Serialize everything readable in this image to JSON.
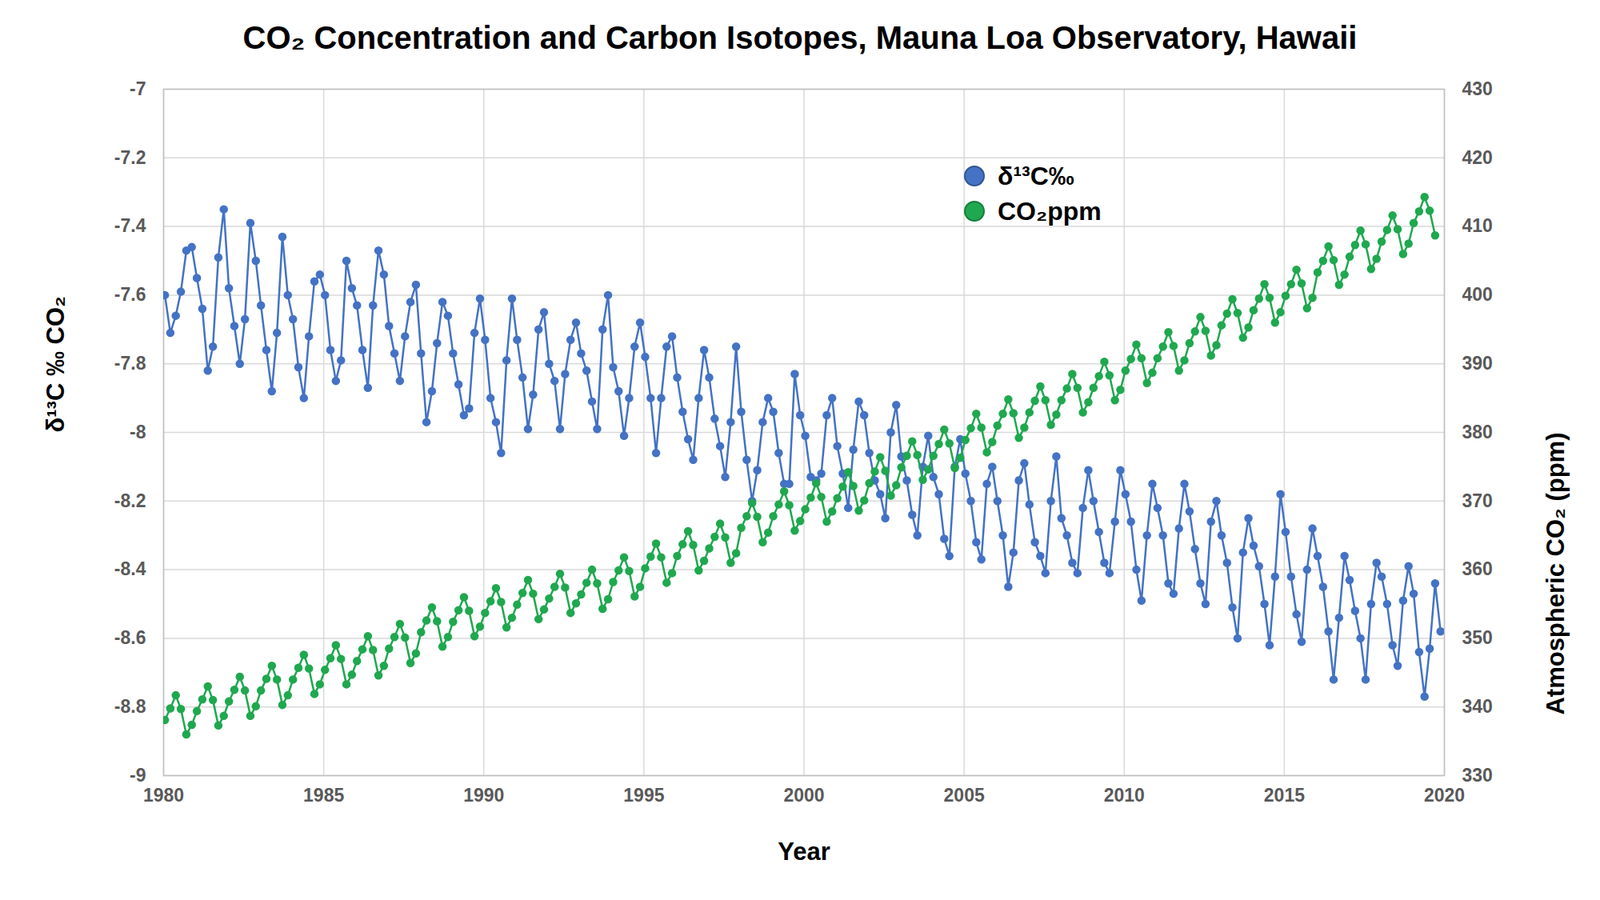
{
  "chart_data": {
    "type": "line",
    "title": "CO₂ Concentration and Carbon Isotopes, Mauna Loa Observatory, Hawaii",
    "x_label": "Year",
    "y_label": "δ¹³C ‰ CO₂",
    "y2_label": "Atmospheric CO₂ (ppm)",
    "x": [
      1980.04,
      1980.21,
      1980.38,
      1980.54,
      1980.71,
      1980.88,
      1981.04,
      1981.21,
      1981.38,
      1981.54,
      1981.71,
      1981.88,
      1982.04,
      1982.21,
      1982.38,
      1982.54,
      1982.71,
      1982.88,
      1983.04,
      1983.21,
      1983.38,
      1983.54,
      1983.71,
      1983.88,
      1984.04,
      1984.21,
      1984.38,
      1984.54,
      1984.71,
      1984.88,
      1985.04,
      1985.21,
      1985.38,
      1985.54,
      1985.71,
      1985.88,
      1986.04,
      1986.21,
      1986.38,
      1986.54,
      1986.71,
      1986.88,
      1987.04,
      1987.21,
      1987.38,
      1987.54,
      1987.71,
      1987.88,
      1988.04,
      1988.21,
      1988.38,
      1988.54,
      1988.71,
      1988.88,
      1989.04,
      1989.21,
      1989.38,
      1989.54,
      1989.71,
      1989.88,
      1990.04,
      1990.21,
      1990.38,
      1990.54,
      1990.71,
      1990.88,
      1991.04,
      1991.21,
      1991.38,
      1991.54,
      1991.71,
      1991.88,
      1992.04,
      1992.21,
      1992.38,
      1992.54,
      1992.71,
      1992.88,
      1993.04,
      1993.21,
      1993.38,
      1993.54,
      1993.71,
      1993.88,
      1994.04,
      1994.21,
      1994.38,
      1994.54,
      1994.71,
      1994.88,
      1995.04,
      1995.21,
      1995.38,
      1995.54,
      1995.71,
      1995.88,
      1996.04,
      1996.21,
      1996.38,
      1996.54,
      1996.71,
      1996.88,
      1997.04,
      1997.21,
      1997.38,
      1997.54,
      1997.71,
      1997.88,
      1998.04,
      1998.21,
      1998.38,
      1998.54,
      1998.71,
      1998.88,
      1999.04,
      1999.21,
      1999.38,
      1999.54,
      1999.71,
      1999.88,
      2000.04,
      2000.21,
      2000.38,
      2000.54,
      2000.71,
      2000.88,
      2001.04,
      2001.21,
      2001.38,
      2001.54,
      2001.71,
      2001.88,
      2002.04,
      2002.21,
      2002.38,
      2002.54,
      2002.71,
      2002.88,
      2003.04,
      2003.21,
      2003.38,
      2003.54,
      2003.71,
      2003.88,
      2004.04,
      2004.21,
      2004.38,
      2004.54,
      2004.71,
      2004.88,
      2005.04,
      2005.21,
      2005.38,
      2005.54,
      2005.71,
      2005.88,
      2006.04,
      2006.21,
      2006.38,
      2006.54,
      2006.71,
      2006.88,
      2007.04,
      2007.21,
      2007.38,
      2007.54,
      2007.71,
      2007.88,
      2008.04,
      2008.21,
      2008.38,
      2008.54,
      2008.71,
      2008.88,
      2009.04,
      2009.21,
      2009.38,
      2009.54,
      2009.71,
      2009.88,
      2010.04,
      2010.21,
      2010.38,
      2010.54,
      2010.71,
      2010.88,
      2011.04,
      2011.21,
      2011.38,
      2011.54,
      2011.71,
      2011.88,
      2012.04,
      2012.21,
      2012.38,
      2012.54,
      2012.71,
      2012.88,
      2013.04,
      2013.21,
      2013.38,
      2013.54,
      2013.71,
      2013.88,
      2014.04,
      2014.21,
      2014.38,
      2014.54,
      2014.71,
      2014.88,
      2015.04,
      2015.21,
      2015.38,
      2015.54,
      2015.71,
      2015.88,
      2016.04,
      2016.21,
      2016.38,
      2016.54,
      2016.71,
      2016.88,
      2017.04,
      2017.21,
      2017.38,
      2017.54,
      2017.71,
      2017.88,
      2018.04,
      2018.21,
      2018.38,
      2018.54,
      2018.71,
      2018.88,
      2019.04,
      2019.21,
      2019.38,
      2019.54,
      2019.71,
      2019.88
    ],
    "series": [
      {
        "name": "δ¹³C‰",
        "color": "#4472c4",
        "axis": "y",
        "marker": "circle",
        "values": [
          -7.6,
          -7.71,
          -7.66,
          -7.59,
          -7.47,
          -7.46,
          -7.55,
          -7.64,
          -7.82,
          -7.75,
          -7.49,
          -7.35,
          -7.58,
          -7.69,
          -7.8,
          -7.67,
          -7.39,
          -7.5,
          -7.63,
          -7.76,
          -7.88,
          -7.71,
          -7.43,
          -7.6,
          -7.67,
          -7.81,
          -7.9,
          -7.72,
          -7.56,
          -7.54,
          -7.6,
          -7.76,
          -7.85,
          -7.79,
          -7.5,
          -7.58,
          -7.63,
          -7.76,
          -7.87,
          -7.63,
          -7.47,
          -7.54,
          -7.69,
          -7.77,
          -7.85,
          -7.72,
          -7.62,
          -7.57,
          -7.77,
          -7.97,
          -7.88,
          -7.74,
          -7.62,
          -7.66,
          -7.77,
          -7.86,
          -7.95,
          -7.93,
          -7.71,
          -7.61,
          -7.73,
          -7.9,
          -7.97,
          -8.06,
          -7.79,
          -7.61,
          -7.73,
          -7.84,
          -7.99,
          -7.89,
          -7.7,
          -7.65,
          -7.8,
          -7.85,
          -7.99,
          -7.83,
          -7.73,
          -7.68,
          -7.77,
          -7.82,
          -7.91,
          -7.99,
          -7.7,
          -7.6,
          -7.81,
          -7.88,
          -8.01,
          -7.9,
          -7.75,
          -7.68,
          -7.78,
          -7.9,
          -8.06,
          -7.9,
          -7.75,
          -7.72,
          -7.84,
          -7.94,
          -8.02,
          -8.08,
          -7.9,
          -7.76,
          -7.84,
          -7.96,
          -8.04,
          -8.13,
          -7.97,
          -7.75,
          -7.94,
          -8.08,
          -8.2,
          -8.11,
          -7.97,
          -7.9,
          -7.94,
          -8.06,
          -8.15,
          -8.15,
          -7.83,
          -7.95,
          -8.01,
          -8.13,
          -8.14,
          -8.12,
          -7.95,
          -7.9,
          -8.04,
          -8.12,
          -8.22,
          -8.05,
          -7.91,
          -7.95,
          -8.06,
          -8.14,
          -8.18,
          -8.25,
          -8.0,
          -7.92,
          -8.07,
          -8.14,
          -8.24,
          -8.3,
          -8.1,
          -8.01,
          -8.13,
          -8.18,
          -8.31,
          -8.36,
          -8.1,
          -8.02,
          -8.12,
          -8.2,
          -8.32,
          -8.37,
          -8.15,
          -8.1,
          -8.2,
          -8.3,
          -8.45,
          -8.35,
          -8.14,
          -8.09,
          -8.21,
          -8.32,
          -8.36,
          -8.41,
          -8.2,
          -8.07,
          -8.25,
          -8.3,
          -8.38,
          -8.41,
          -8.22,
          -8.11,
          -8.2,
          -8.29,
          -8.38,
          -8.41,
          -8.26,
          -8.11,
          -8.18,
          -8.26,
          -8.4,
          -8.49,
          -8.3,
          -8.15,
          -8.22,
          -8.3,
          -8.44,
          -8.47,
          -8.28,
          -8.15,
          -8.23,
          -8.34,
          -8.44,
          -8.5,
          -8.26,
          -8.2,
          -8.3,
          -8.38,
          -8.51,
          -8.6,
          -8.35,
          -8.25,
          -8.33,
          -8.39,
          -8.5,
          -8.62,
          -8.42,
          -8.18,
          -8.29,
          -8.42,
          -8.53,
          -8.61,
          -8.4,
          -8.28,
          -8.36,
          -8.45,
          -8.58,
          -8.72,
          -8.54,
          -8.36,
          -8.43,
          -8.52,
          -8.6,
          -8.72,
          -8.5,
          -8.38,
          -8.42,
          -8.5,
          -8.62,
          -8.68,
          -8.49,
          -8.39,
          -8.47,
          -8.64,
          -8.77,
          -8.63,
          -8.44,
          -8.58
        ]
      },
      {
        "name": "CO₂ppm",
        "color": "#1fa84f",
        "axis": "y2",
        "marker": "circle",
        "values": [
          338.1,
          339.8,
          341.7,
          339.7,
          336.0,
          337.4,
          339.4,
          341.1,
          343.0,
          341.0,
          337.3,
          338.7,
          340.8,
          342.5,
          344.4,
          342.4,
          338.7,
          340.1,
          342.4,
          344.1,
          346.0,
          344.0,
          340.3,
          341.7,
          344.0,
          345.7,
          347.6,
          345.6,
          341.9,
          343.3,
          345.4,
          347.1,
          349.0,
          347.0,
          343.3,
          344.7,
          346.7,
          348.4,
          350.3,
          348.3,
          344.6,
          346.0,
          348.5,
          350.2,
          352.1,
          350.1,
          346.4,
          347.8,
          350.9,
          352.6,
          354.5,
          352.5,
          348.8,
          350.2,
          352.4,
          354.1,
          356.0,
          354.0,
          350.3,
          351.7,
          353.7,
          355.4,
          357.3,
          355.3,
          351.6,
          353.0,
          354.9,
          356.6,
          358.5,
          356.5,
          352.8,
          354.2,
          355.8,
          357.5,
          359.4,
          357.4,
          353.7,
          355.1,
          356.4,
          358.1,
          360.0,
          358.0,
          354.3,
          355.7,
          358.2,
          359.9,
          361.8,
          359.8,
          356.1,
          357.5,
          360.2,
          361.9,
          363.8,
          361.8,
          358.1,
          359.5,
          362.0,
          363.7,
          365.6,
          363.6,
          359.9,
          361.3,
          363.1,
          364.8,
          366.7,
          364.7,
          361.0,
          362.4,
          366.1,
          367.8,
          369.7,
          367.7,
          364.0,
          365.4,
          367.8,
          369.5,
          371.4,
          369.4,
          365.7,
          367.1,
          368.8,
          370.5,
          372.6,
          370.6,
          367.0,
          368.5,
          370.4,
          372.1,
          374.2,
          372.2,
          368.6,
          370.1,
          372.6,
          374.3,
          376.4,
          374.4,
          370.8,
          372.3,
          374.9,
          376.6,
          378.7,
          376.7,
          373.1,
          374.6,
          376.6,
          378.3,
          380.4,
          378.4,
          374.8,
          376.3,
          378.9,
          380.6,
          382.7,
          380.7,
          377.1,
          378.6,
          381.0,
          382.7,
          384.8,
          382.8,
          379.2,
          380.7,
          382.9,
          384.6,
          386.7,
          384.7,
          381.1,
          382.6,
          384.7,
          386.4,
          388.5,
          386.5,
          382.9,
          384.4,
          386.5,
          388.2,
          390.3,
          388.3,
          384.7,
          386.2,
          389.0,
          390.7,
          392.8,
          390.8,
          387.2,
          388.7,
          390.8,
          392.5,
          394.6,
          392.6,
          389.0,
          390.5,
          393.0,
          394.7,
          396.8,
          394.8,
          391.2,
          392.7,
          395.6,
          397.3,
          399.4,
          397.4,
          393.8,
          395.3,
          397.8,
          399.5,
          401.6,
          399.6,
          396.0,
          397.5,
          399.9,
          401.6,
          403.7,
          401.7,
          398.1,
          399.6,
          403.3,
          405.0,
          407.1,
          405.1,
          401.5,
          403.0,
          405.6,
          407.3,
          409.4,
          407.4,
          403.8,
          405.3,
          407.8,
          409.5,
          411.6,
          409.6,
          406.0,
          407.5,
          410.5,
          412.2,
          414.3,
          412.3,
          408.7,
          null
        ]
      }
    ],
    "xlim": [
      1980,
      2020
    ],
    "xticks": [
      1980,
      1985,
      1990,
      1995,
      2000,
      2005,
      2010,
      2015,
      2020
    ],
    "ylim": [
      -9,
      -7
    ],
    "yticks": [
      -9,
      -8.8,
      -8.6,
      -8.4,
      -8.2,
      -8,
      -7.8,
      -7.6,
      -7.4,
      -7.2,
      -7
    ],
    "y2lim": [
      330,
      430
    ],
    "y2ticks": [
      330,
      340,
      350,
      360,
      370,
      380,
      390,
      400,
      410,
      420,
      430
    ],
    "grid": true,
    "legend": "top"
  }
}
